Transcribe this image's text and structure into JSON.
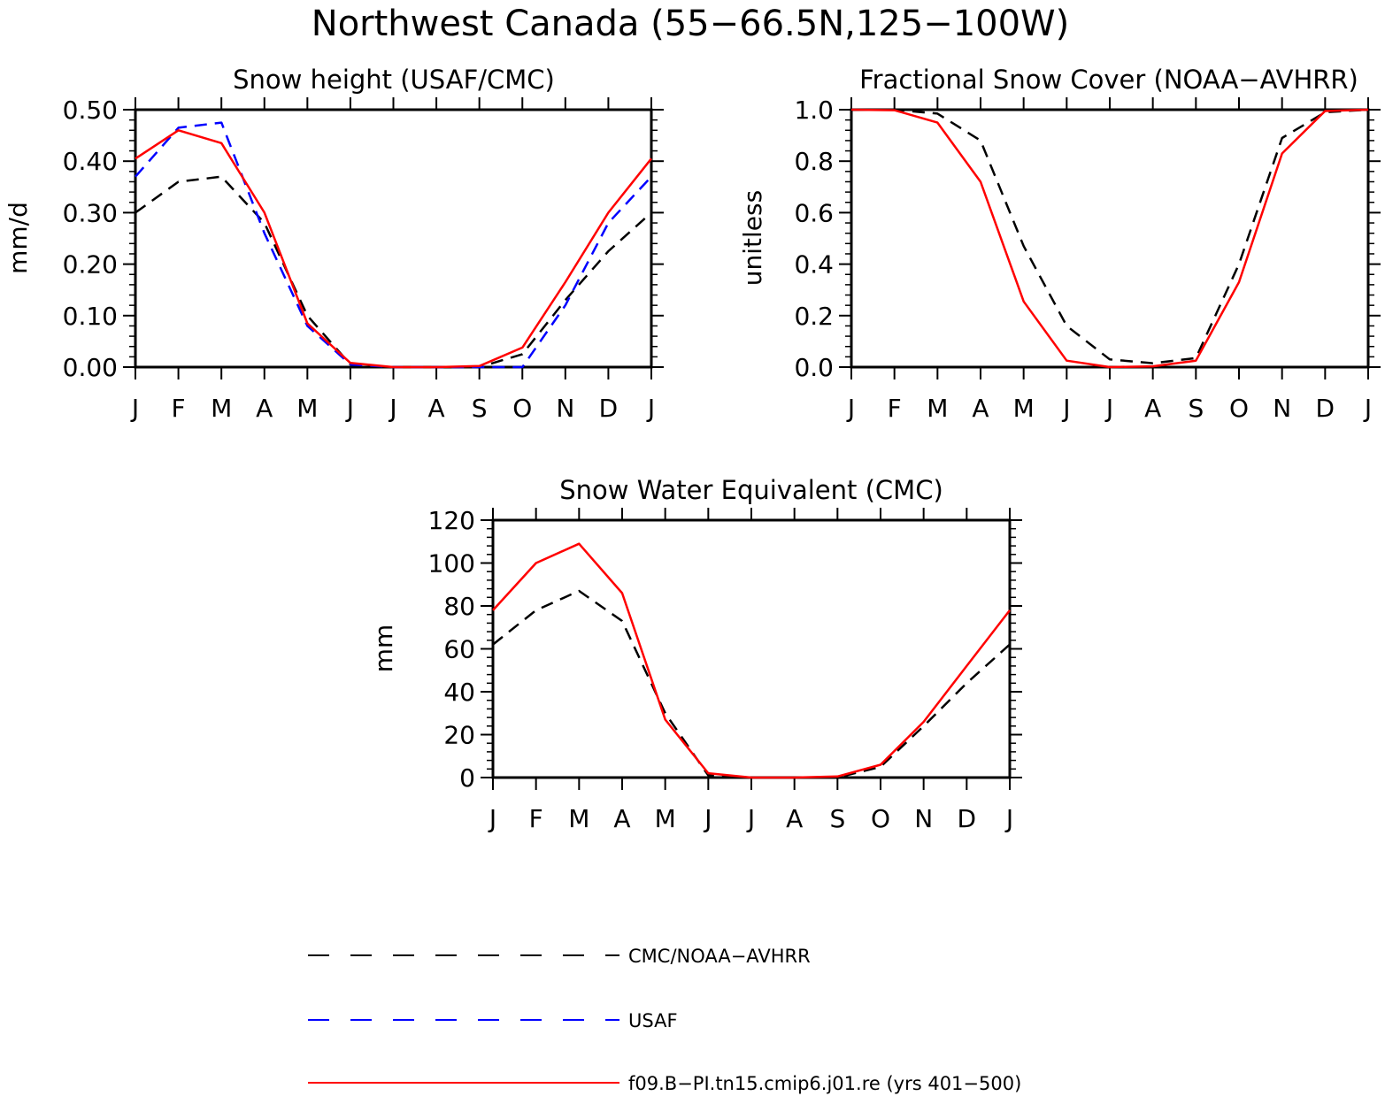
{
  "figure_title": "Northwest Canada (55−66.5N,125−100W)",
  "legend": [
    {
      "label": "CMC/NOAA−AVHRR",
      "color": "#000000",
      "style": "dashed"
    },
    {
      "label": "USAF",
      "color": "#0000ff",
      "style": "dashed"
    },
    {
      "label": "f09.B−PI.tn15.cmip6.j01.re (yrs 401−500)",
      "color": "#ff0000",
      "style": "solid"
    }
  ],
  "chart_data": [
    {
      "type": "line",
      "title": "Snow height (USAF/CMC)",
      "xlabel": "",
      "ylabel": "mm/d",
      "categories": [
        "J",
        "F",
        "M",
        "A",
        "M",
        "J",
        "J",
        "A",
        "S",
        "O",
        "N",
        "D",
        "J"
      ],
      "ylim": [
        0,
        0.5
      ],
      "yticks": [
        "0.00",
        "0.10",
        "0.20",
        "0.30",
        "0.40",
        "0.50"
      ],
      "series": [
        {
          "name": "CMC/NOAA−AVHRR",
          "color": "#000000",
          "style": "dashed",
          "values": [
            0.3,
            0.36,
            0.37,
            0.28,
            0.1,
            0.005,
            0.0,
            0.0,
            0.0,
            0.025,
            0.13,
            0.225,
            0.3
          ]
        },
        {
          "name": "USAF",
          "color": "#0000ff",
          "style": "dashed",
          "values": [
            0.37,
            0.465,
            0.475,
            0.26,
            0.08,
            0.005,
            0.0,
            0.0,
            0.0,
            0.0,
            0.12,
            0.28,
            0.37
          ]
        },
        {
          "name": "f09.B−PI.tn15.cmip6.j01.re (yrs 401−500)",
          "color": "#ff0000",
          "style": "solid",
          "values": [
            0.405,
            0.46,
            0.435,
            0.3,
            0.085,
            0.008,
            0.0,
            0.0,
            0.002,
            0.038,
            0.165,
            0.3,
            0.405
          ]
        }
      ]
    },
    {
      "type": "line",
      "title": "Fractional Snow Cover (NOAA−AVHRR)",
      "xlabel": "",
      "ylabel": "unitless",
      "categories": [
        "J",
        "F",
        "M",
        "A",
        "M",
        "J",
        "J",
        "A",
        "S",
        "O",
        "N",
        "D",
        "J"
      ],
      "ylim": [
        0,
        1.0
      ],
      "yticks": [
        "0.0",
        "0.2",
        "0.4",
        "0.6",
        "0.8",
        "1.0"
      ],
      "series": [
        {
          "name": "CMC/NOAA−AVHRR",
          "color": "#000000",
          "style": "dashed",
          "values": [
            1.0,
            1.0,
            0.985,
            0.88,
            0.47,
            0.16,
            0.03,
            0.015,
            0.035,
            0.4,
            0.89,
            0.99,
            1.0
          ]
        },
        {
          "name": "f09.B−PI.tn15.cmip6.j01.re (yrs 401−500)",
          "color": "#ff0000",
          "style": "solid",
          "values": [
            1.0,
            0.998,
            0.95,
            0.72,
            0.255,
            0.025,
            0.0,
            0.003,
            0.025,
            0.33,
            0.83,
            0.995,
            1.0
          ]
        }
      ]
    },
    {
      "type": "line",
      "title": "Snow Water Equivalent (CMC)",
      "xlabel": "",
      "ylabel": "mm",
      "categories": [
        "J",
        "F",
        "M",
        "A",
        "M",
        "J",
        "J",
        "A",
        "S",
        "O",
        "N",
        "D",
        "J"
      ],
      "ylim": [
        0,
        120
      ],
      "yticks": [
        "0",
        "20",
        "40",
        "60",
        "80",
        "100",
        "120"
      ],
      "series": [
        {
          "name": "CMC/NOAA−AVHRR",
          "color": "#000000",
          "style": "dashed",
          "values": [
            62,
            78,
            87,
            73,
            30,
            1,
            0,
            0,
            0,
            5,
            24,
            44,
            62
          ]
        },
        {
          "name": "f09.B−PI.tn15.cmip6.j01.re (yrs 401−500)",
          "color": "#ff0000",
          "style": "solid",
          "values": [
            78,
            100,
            109,
            86,
            27,
            2,
            0,
            0,
            0.5,
            6,
            26,
            52,
            78
          ]
        }
      ]
    }
  ]
}
